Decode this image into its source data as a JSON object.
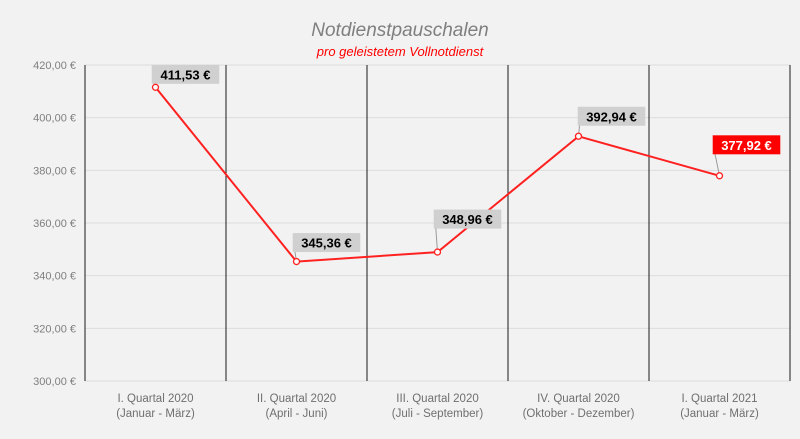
{
  "chart_data": {
    "type": "line",
    "title": "Notdienstpauschalen",
    "subtitle": "pro geleistetem Vollnotdienst",
    "categories": [
      [
        "I. Quartal 2020",
        "(Januar - März)"
      ],
      [
        "II. Quartal 2020",
        "(April - Juni)"
      ],
      [
        "III. Quartal 2020",
        "(Juli - September)"
      ],
      [
        "IV. Quartal 2020",
        "(Oktober - Dezember)"
      ],
      [
        "I. Quartal 2021",
        "(Januar - März)"
      ]
    ],
    "values": [
      411.53,
      345.36,
      348.96,
      392.94,
      377.92
    ],
    "data_labels": [
      "411,53 €",
      "345,36 €",
      "348,96 €",
      "392,94 €",
      "377,92 €"
    ],
    "highlight_index": 4,
    "ylim": [
      300,
      420
    ],
    "yticks": [
      300,
      320,
      340,
      360,
      380,
      400,
      420
    ],
    "ytick_labels": [
      "300,00 €",
      "320,00 €",
      "340,00 €",
      "360,00 €",
      "380,00 €",
      "400,00 €",
      "420,00 €"
    ],
    "xlabel": "",
    "ylabel": "",
    "grid": true,
    "colors": {
      "line": "#ff2020",
      "label_bg": "#d0d0d0",
      "highlight_bg": "#ff0000",
      "highlight_text": "#ffffff",
      "title": "#7f7f7f",
      "subtitle": "#ff0000"
    }
  }
}
